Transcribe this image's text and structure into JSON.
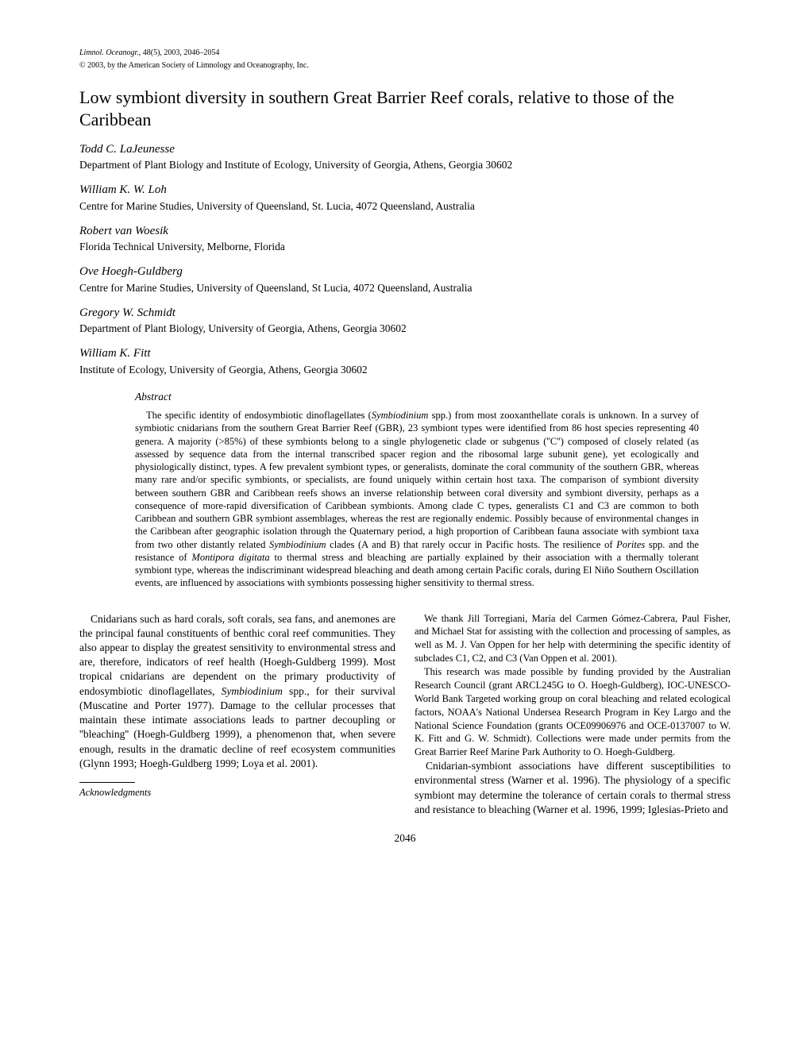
{
  "header": {
    "journal_italic": "Limnol. Oceanogr.,",
    "journal_rest": " 48(5), 2003, 2046–2054",
    "copyright": "© 2003, by the American Society of Limnology and Oceanography, Inc."
  },
  "title": "Low symbiont diversity in southern Great Barrier Reef corals, relative to those of the Caribbean",
  "authors": [
    {
      "name": "Todd C. LaJeunesse",
      "affil": "Department of Plant Biology and Institute of Ecology, University of Georgia, Athens, Georgia 30602"
    },
    {
      "name": "William K. W. Loh",
      "affil": "Centre for Marine Studies, University of Queensland, St. Lucia, 4072 Queensland, Australia"
    },
    {
      "name": "Robert van Woesik",
      "affil": "Florida Technical University, Melborne, Florida"
    },
    {
      "name": "Ove Hoegh-Guldberg",
      "affil": "Centre for Marine Studies, University of Queensland, St Lucia, 4072 Queensland, Australia"
    },
    {
      "name": "Gregory W. Schmidt",
      "affil": "Department of Plant Biology, University of Georgia, Athens, Georgia 30602"
    },
    {
      "name": "William K. Fitt",
      "affil": "Institute of Ecology, University of Georgia, Athens, Georgia 30602"
    }
  ],
  "abstract": {
    "heading": "Abstract",
    "body": "The specific identity of endosymbiotic dinoflagellates (<em>Symbiodinium</em> spp.) from most zooxanthellate corals is unknown. In a survey of symbiotic cnidarians from the southern Great Barrier Reef (GBR), 23 symbiont types were identified from 86 host species representing 40 genera. A majority (>85%) of these symbionts belong to a single phylogenetic clade or subgenus (''C'') composed of closely related (as assessed by sequence data from the internal transcribed spacer region and the ribosomal large subunit gene), yet ecologically and physiologically distinct, types. A few prevalent symbiont types, or generalists, dominate the coral community of the southern GBR, whereas many rare and/or specific symbionts, or specialists, are found uniquely within certain host taxa. The comparison of symbiont diversity between southern GBR and Caribbean reefs shows an inverse relationship between coral diversity and symbiont diversity, perhaps as a consequence of more-rapid diversification of Caribbean symbionts. Among clade C types, generalists C1 and C3 are common to both Caribbean and southern GBR symbiont assemblages, whereas the rest are regionally endemic. Possibly because of environmental changes in the Caribbean after geographic isolation through the Quaternary period, a high proportion of Caribbean fauna associate with symbiont taxa from two other distantly related <em>Symbiodinium</em> clades (A and B) that rarely occur in Pacific hosts. The resilience of <em>Porites</em> spp. and the resistance of <em>Montipora digitata</em> to thermal stress and bleaching are partially explained by their association with a thermally tolerant symbiont type, whereas the indiscriminant widespread bleaching and death among certain Pacific corals, during El Niño Southern Oscillation events, are influenced by associations with symbionts possessing higher sensitivity to thermal stress."
  },
  "body": {
    "para1": "Cnidarians such as hard corals, soft corals, sea fans, and anemones are the principal faunal constituents of benthic coral reef communities. They also appear to display the greatest sensitivity to environmental stress and are, therefore, indicators of reef health (Hoegh-Guldberg 1999). Most tropical cnidarians are dependent on the primary productivity of endosymbiotic dinoflagellates, <em>Symbiodinium</em> spp., for their survival (Muscatine and Porter 1977). Damage to the cellular processes that maintain these intimate associations leads to partner decoupling or ''bleaching'' (Hoegh-Guldberg 1999), a phenomenon that, when severe enough, results in the dramatic decline of reef ecosystem communities (Glynn 1993; Hoegh-Guldberg 1999; Loya et al. 2001).",
    "para2": "Cnidarian-symbiont associations have different susceptibilities to environmental stress (Warner et al. 1996). The physiology of a specific symbiont may determine the tolerance of certain corals to thermal stress and resistance to bleaching (Warner et al. 1996, 1999; Iglesias-Prieto and"
  },
  "acknowledgments": {
    "heading": "Acknowledgments",
    "para1": "We thank Jill Torregiani, María del Carmen Gómez-Cabrera, Paul Fisher, and Michael Stat for assisting with the collection and processing of samples, as well as M. J. Van Oppen for her help with determining the specific identity of subclades C1, C2, and C3 (Van Oppen et al. 2001).",
    "para2": "This research was made possible by funding provided by the Australian Research Council (grant ARCL245G to O. Hoegh-Guldberg), IOC-UNESCO-World Bank Targeted working group on coral bleaching and related ecological factors, NOAA's National Undersea Research Program in Key Largo and the National Science Foundation (grants OCE09906976 and OCE-0137007 to W. K. Fitt and G. W. Schmidt). Collections were made under permits from the Great Barrier Reef Marine Park Authority to O. Hoegh-Guldberg."
  },
  "page_number": "2046"
}
